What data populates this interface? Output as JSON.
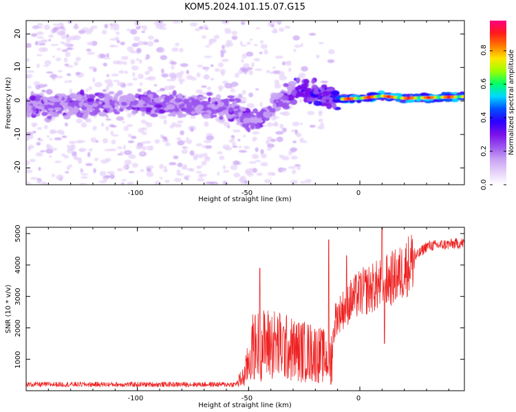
{
  "title": "KOM5.2024.101.15.07.G15",
  "colors": {
    "snr_line": "#ee2222",
    "axes": "#000000"
  },
  "colormap": [
    "#ffffff",
    "#e6d2fa",
    "#c9a2f4",
    "#9b55ee",
    "#7a10ea",
    "#2b00ff",
    "#0050ff",
    "#00d8ff",
    "#00ff6a",
    "#9cff00",
    "#ffe600",
    "#ff7a00",
    "#ff1a1a",
    "#ff0080"
  ],
  "chart_data": [
    {
      "type": "heatmap",
      "title": "KOM5.2024.101.15.07.G15",
      "xlabel": "Height of straight line (km)",
      "ylabel": "Frequency (Hz)",
      "xlim": [
        -150,
        47
      ],
      "ylim": [
        -25,
        24
      ],
      "xticks": [
        -100,
        -50,
        0
      ],
      "yticks": [
        -20,
        -10,
        0,
        10,
        20
      ],
      "xtick_labels": [
        "-100",
        "-50",
        "0"
      ],
      "ytick_labels": [
        "-20",
        "-10",
        "0",
        "10",
        "20"
      ],
      "colorbar": {
        "label": "Normalized spectral amplitude",
        "range": [
          0,
          0.98
        ],
        "ticks": [
          0.0,
          0.2,
          0.4,
          0.6,
          0.8
        ],
        "tick_labels": [
          "0.0",
          "0.2",
          "0.4",
          "0.6",
          "0.8"
        ]
      },
      "ridge_center": [
        {
          "x": -150,
          "y": -1.5
        },
        {
          "x": -100,
          "y": -0.5
        },
        {
          "x": -57,
          "y": -2.0
        },
        {
          "x": -50,
          "y": -6.0
        },
        {
          "x": -44,
          "y": -5.0
        },
        {
          "x": -36,
          "y": 0.0
        },
        {
          "x": -28,
          "y": 4.0
        },
        {
          "x": -20,
          "y": 2.5
        },
        {
          "x": -10,
          "y": 0.5
        },
        {
          "x": 0,
          "y": 0.8
        },
        {
          "x": 10,
          "y": 1.5
        },
        {
          "x": 20,
          "y": 0.8
        },
        {
          "x": 47,
          "y": 1.3
        }
      ]
    },
    {
      "type": "line",
      "xlabel": "Height of straight line (km)",
      "ylabel": "SNR (10 * v/v)",
      "xlim": [
        -150,
        47
      ],
      "ylim": [
        0,
        5200
      ],
      "xticks": [
        -100,
        -50,
        0
      ],
      "yticks": [
        1000,
        2000,
        3000,
        4000,
        5000
      ],
      "xtick_labels": [
        "-100",
        "-50",
        "0"
      ],
      "ytick_labels": [
        "1000",
        "2000",
        "3000",
        "4000",
        "5000"
      ],
      "series": [
        {
          "trend": [
            {
              "x": -150,
              "y": 200
            },
            {
              "x": -56,
              "y": 200
            },
            {
              "x": -52,
              "y": 450
            },
            {
              "x": -48,
              "y": 1400
            },
            {
              "x": -40,
              "y": 1500
            },
            {
              "x": -30,
              "y": 1300
            },
            {
              "x": -20,
              "y": 1200
            },
            {
              "x": -13,
              "y": 1000
            },
            {
              "x": -11,
              "y": 2300
            },
            {
              "x": -5,
              "y": 2800
            },
            {
              "x": 0,
              "y": 3100
            },
            {
              "x": 10,
              "y": 3400
            },
            {
              "x": 18,
              "y": 3700
            },
            {
              "x": 23,
              "y": 4100
            },
            {
              "x": 30,
              "y": 4600
            },
            {
              "x": 47,
              "y": 4700
            }
          ],
          "spikes": [
            {
              "x": -45,
              "y": 3900
            },
            {
              "x": -14,
              "y": 4800
            },
            {
              "x": -13,
              "y": 200
            },
            {
              "x": -6,
              "y": 4300
            },
            {
              "x": 10,
              "y": 5200
            },
            {
              "x": 11,
              "y": 1500
            }
          ]
        }
      ]
    }
  ]
}
